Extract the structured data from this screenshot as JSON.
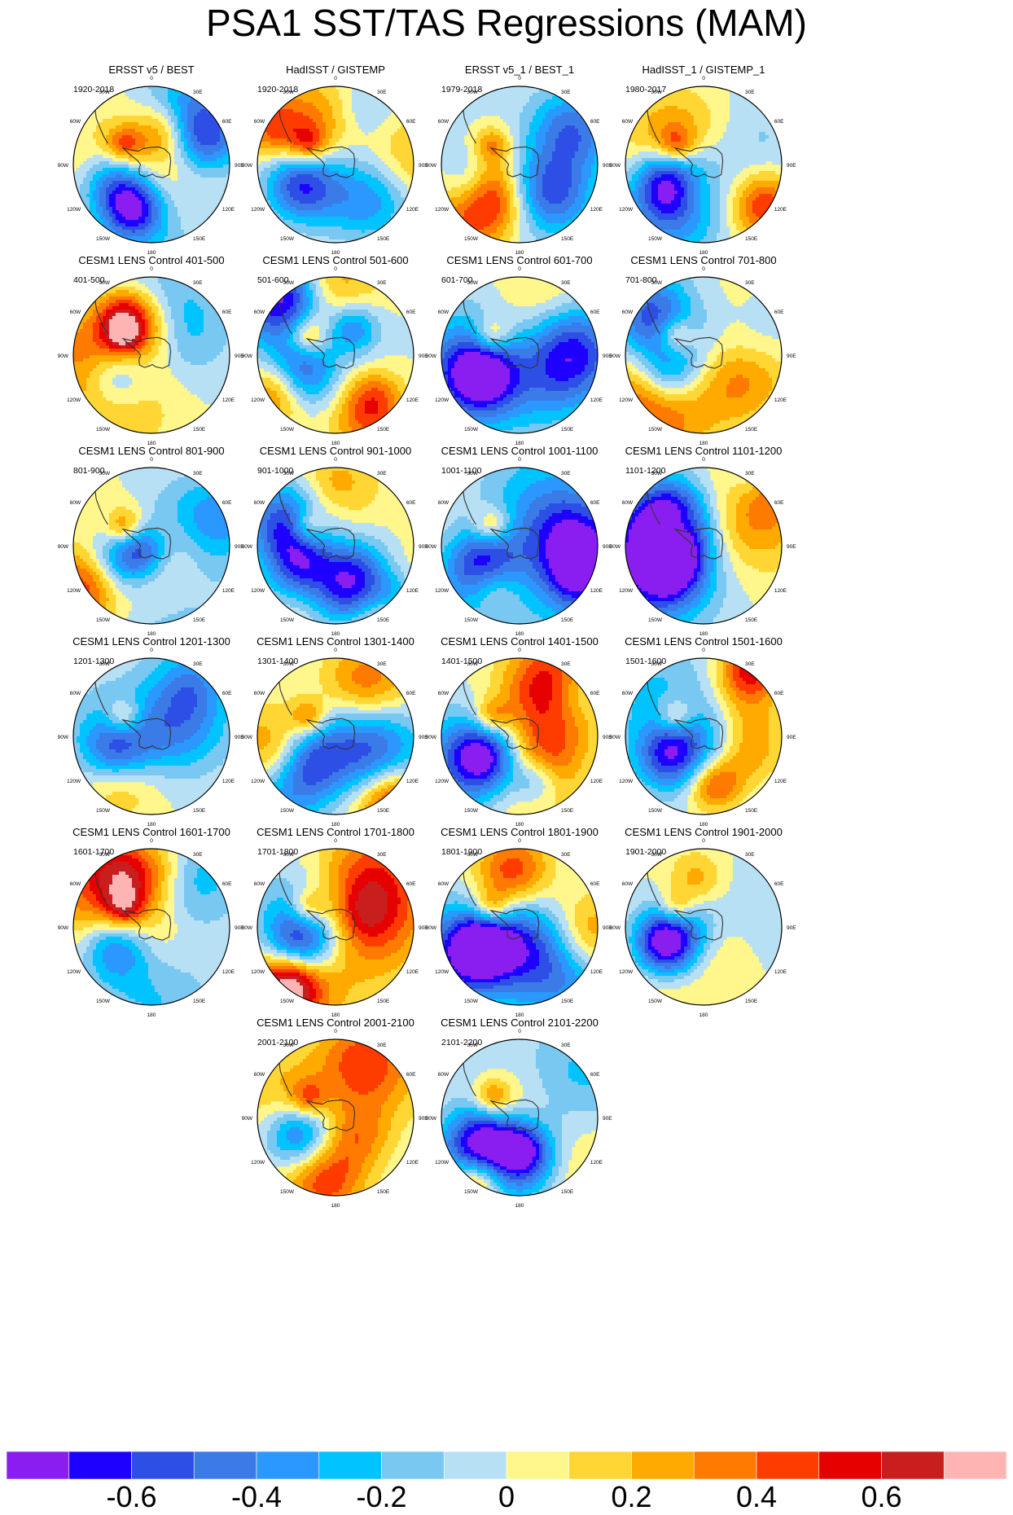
{
  "title": "PSA1 SST/TAS Regressions (MAM)",
  "chart_data": {
    "type": "heatmap",
    "projection": "south-polar-stereographic",
    "layout": {
      "columns": 4,
      "rows": 6
    },
    "lon_labels": [
      "0",
      "30E",
      "60E",
      "90E",
      "120E",
      "150E",
      "180",
      "150W",
      "120W",
      "90W",
      "60W",
      "30W"
    ],
    "panels": [
      {
        "title": "ERSST v5 / BEST",
        "period": "1920-2018",
        "seed": 11
      },
      {
        "title": "HadISST / GISTEMP",
        "period": "1920-2018",
        "seed": 12
      },
      {
        "title": "ERSST v5_1 / BEST_1",
        "period": "1979-2018",
        "seed": 13
      },
      {
        "title": "HadISST_1 / GISTEMP_1",
        "period": "1980-2017",
        "seed": 14
      },
      {
        "title": "CESM1 LENS Control 401-500",
        "period": "401-500",
        "seed": 21
      },
      {
        "title": "CESM1 LENS Control 501-600",
        "period": "501-600",
        "seed": 22
      },
      {
        "title": "CESM1 LENS Control 601-700",
        "period": "601-700",
        "seed": 23
      },
      {
        "title": "CESM1 LENS Control 701-800",
        "period": "701-800",
        "seed": 24
      },
      {
        "title": "CESM1 LENS Control 801-900",
        "period": "801-900",
        "seed": 31
      },
      {
        "title": "CESM1 LENS Control 901-1000",
        "period": "901-1000",
        "seed": 32
      },
      {
        "title": "CESM1 LENS Control 1001-1100",
        "period": "1001-1100",
        "seed": 33
      },
      {
        "title": "CESM1 LENS Control 1101-1200",
        "period": "1101-1200",
        "seed": 34
      },
      {
        "title": "CESM1 LENS Control 1201-1300",
        "period": "1201-1300",
        "seed": 41
      },
      {
        "title": "CESM1 LENS Control 1301-1400",
        "period": "1301-1400",
        "seed": 42
      },
      {
        "title": "CESM1 LENS Control 1401-1500",
        "period": "1401-1500",
        "seed": 43
      },
      {
        "title": "CESM1 LENS Control 1501-1600",
        "period": "1501-1600",
        "seed": 44
      },
      {
        "title": "CESM1 LENS Control 1601-1700",
        "period": "1601-1700",
        "seed": 51
      },
      {
        "title": "CESM1 LENS Control 1701-1800",
        "period": "1701-1800",
        "seed": 52
      },
      {
        "title": "CESM1 LENS Control 1801-1900",
        "period": "1801-1900",
        "seed": 53
      },
      {
        "title": "CESM1 LENS Control 1901-2000",
        "period": "1901-2000",
        "seed": 54
      },
      {
        "title": "CESM1 LENS Control 2001-2100",
        "period": "2001-2100",
        "seed": 61
      },
      {
        "title": "CESM1 LENS Control 2101-2200",
        "period": "2101-2200",
        "seed": 62
      }
    ],
    "colorbar": {
      "colors": [
        "#8a1ef0",
        "#1e00ff",
        "#2d4fe6",
        "#3a7be8",
        "#2b98ff",
        "#00c3ff",
        "#78c8f2",
        "#b7e0f4",
        "#fff68c",
        "#ffd633",
        "#ffaa00",
        "#ff7a00",
        "#ff3c00",
        "#e60000",
        "#c81e1e",
        "#ffb4b4"
      ],
      "boundaries": [
        -0.7,
        -0.6,
        -0.5,
        -0.4,
        -0.3,
        -0.2,
        -0.1,
        0,
        0.1,
        0.2,
        0.3,
        0.4,
        0.5,
        0.6,
        0.7
      ],
      "tick_labels": [
        "-0.6",
        "-0.4",
        "-0.2",
        "0",
        "0.2",
        "0.4",
        "0.6"
      ],
      "tick_values": [
        -0.6,
        -0.4,
        -0.2,
        0,
        0.2,
        0.4,
        0.6
      ]
    }
  }
}
